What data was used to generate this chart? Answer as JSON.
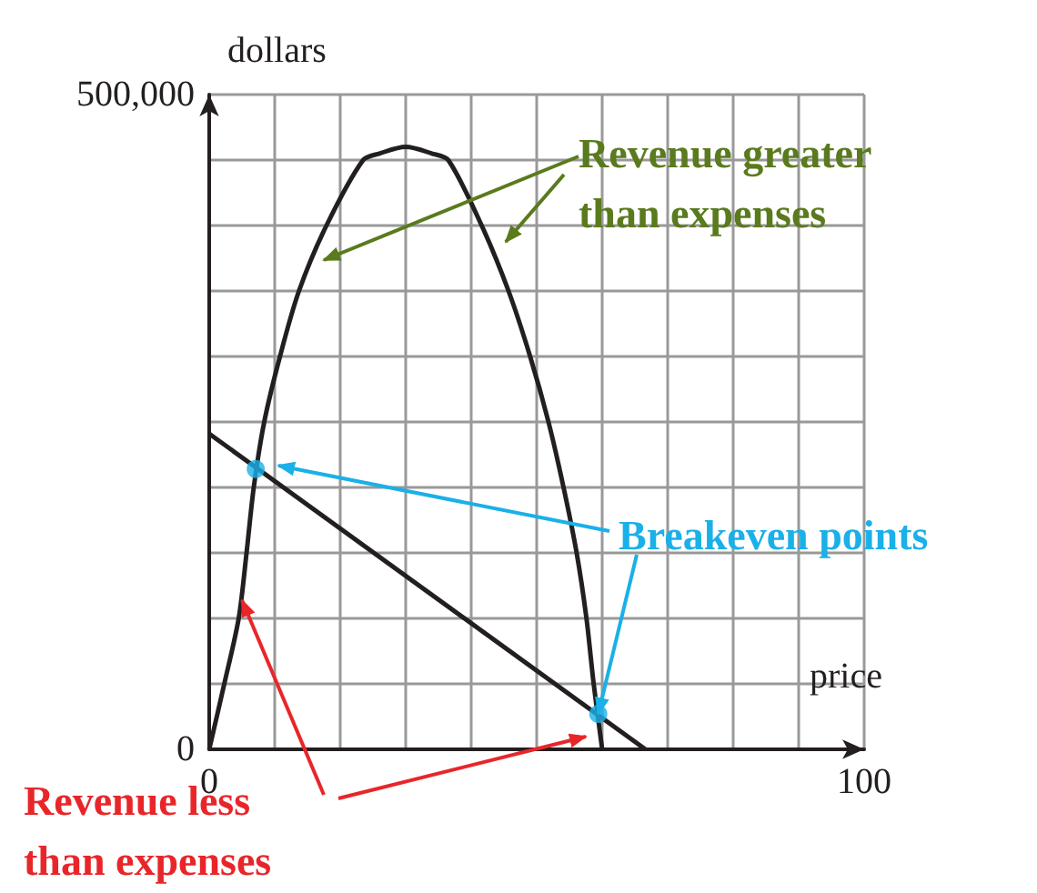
{
  "chart_data": {
    "type": "line",
    "xlabel": "price",
    "ylabel": "dollars",
    "xlim": [
      0,
      100
    ],
    "ylim": [
      0,
      500000
    ],
    "xticks": [
      0,
      {
        "value": 10,
        "label": null
      },
      {
        "value": 20,
        "label": null
      },
      {
        "value": 30,
        "label": null
      },
      {
        "value": 40,
        "label": null
      },
      {
        "value": 50,
        "label": null
      },
      {
        "value": 60,
        "label": null
      },
      {
        "value": 70,
        "label": null
      },
      {
        "value": 80,
        "label": null
      },
      {
        "value": 90,
        "label": null
      },
      100
    ],
    "yticks": [
      0,
      {
        "value": 50000,
        "label": null
      },
      {
        "value": 100000,
        "label": null
      },
      {
        "value": 150000,
        "label": null
      },
      {
        "value": 200000,
        "label": null
      },
      {
        "value": 250000,
        "label": null
      },
      {
        "value": 300000,
        "label": null
      },
      {
        "value": 350000,
        "label": null
      },
      {
        "value": 400000,
        "label": null
      },
      {
        "value": 450000,
        "label": null
      },
      {
        "value": 500000,
        "label": "500,000"
      }
    ],
    "grid": true,
    "line_style": "solid",
    "series": [
      {
        "color": "#231f20",
        "x": [
          0,
          2.3,
          4.5,
          5.7,
          6.8,
          8.4,
          10.8,
          13.7,
          17.9,
          23.5,
          26,
          30,
          34,
          36.5,
          41.6,
          45.7,
          49,
          51.8,
          54.1,
          56.1,
          57.6,
          58.7,
          60
        ],
        "values": [
          0,
          50000,
          100000,
          150000,
          200000,
          250000,
          300000,
          350000,
          400000,
          450000,
          455000,
          460000,
          455000,
          450000,
          400000,
          350000,
          300000,
          250000,
          200000,
          150000,
          100000,
          50000,
          0
        ]
      },
      {
        "color": "#231f20",
        "x": [
          0,
          66.6
        ],
        "values": [
          241000,
          0
        ]
      },
      {
        "type": "scatter",
        "color": "#1ab0e8",
        "marker": "circle",
        "x": [
          7.1,
          59.4
        ],
        "values": [
          214000,
          27000
        ]
      }
    ],
    "annotations": [
      "Revenue greater\nthan expenses",
      {
        "text": "Breakeven points",
        "x": 59.4,
        "y": 27000
      },
      "Revenue less\nthan expenses"
    ]
  }
}
